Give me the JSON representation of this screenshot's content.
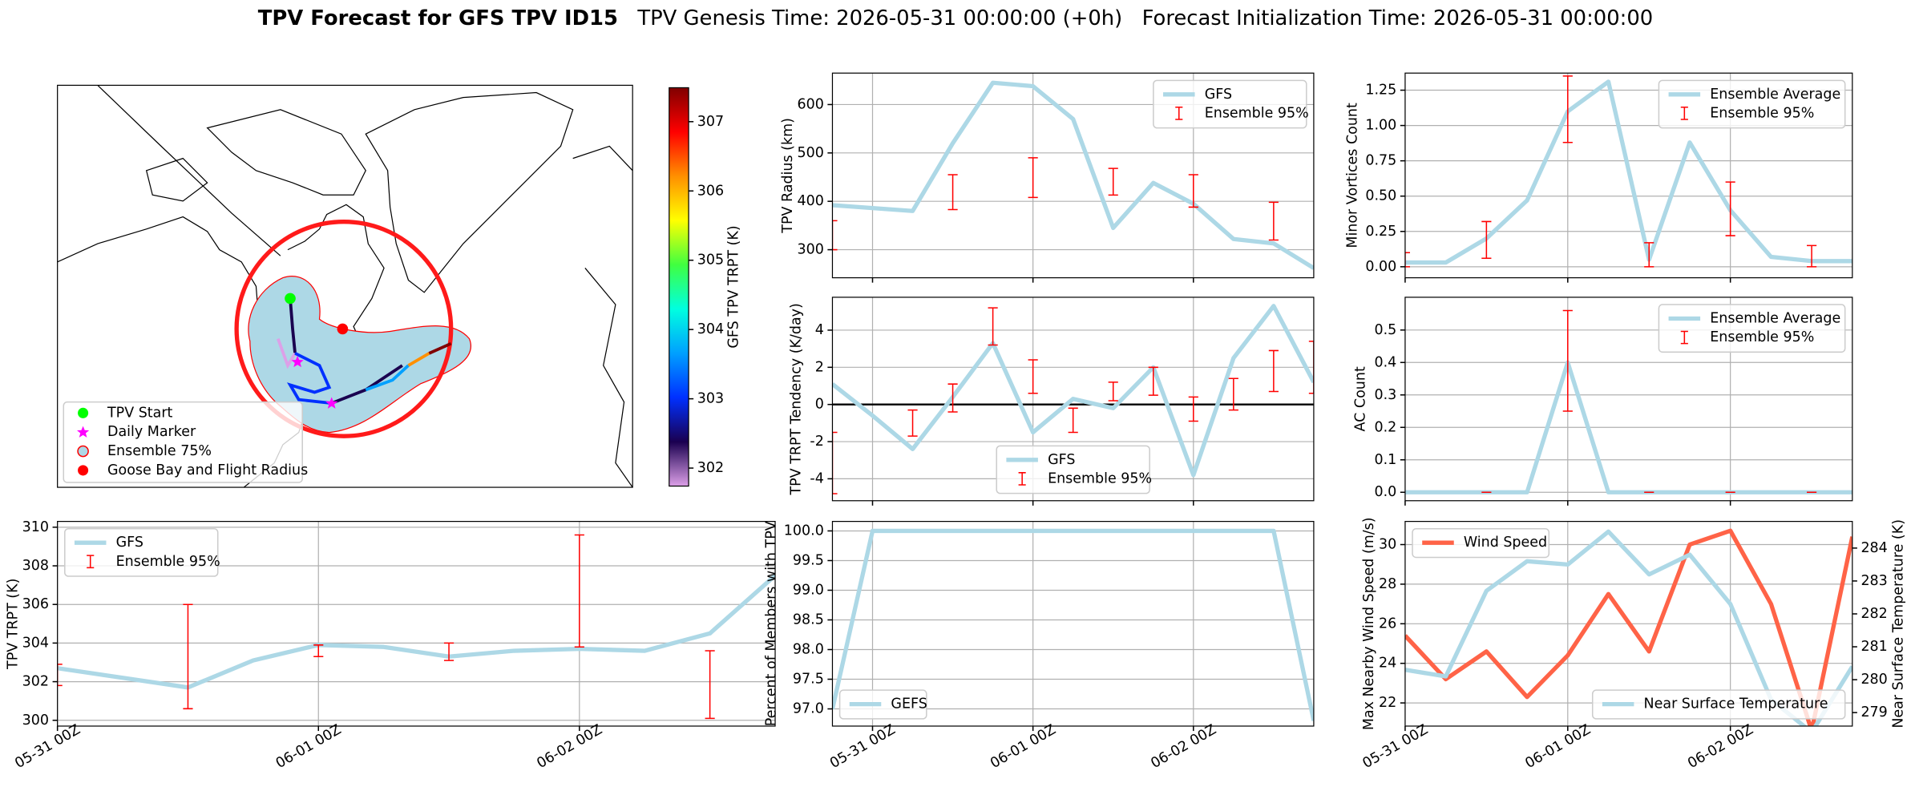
{
  "figure": {
    "title": "TPV Forecast for GFS TPV ID15",
    "genesis": "TPV Genesis Time: 2026-05-31 00:00:00 (+0h)",
    "init": "Forecast Initialization Time: 2026-05-31 00:00:00"
  },
  "chart_data": [
    {
      "type": "map",
      "legend": {
        "loc": "lower left",
        "items": [
          {
            "label": "TPV Start",
            "color": "#00ff00",
            "marker": "circle"
          },
          {
            "label": "Daily Marker",
            "color": "#ff00ff",
            "marker": "star"
          },
          {
            "label": "Ensemble 75%",
            "color": "#add8e6",
            "edgecolor": "#ff0000",
            "marker": "circle"
          },
          {
            "label": "Goose Bay and Flight Radius",
            "color": "#ff0000",
            "marker": "circle"
          }
        ]
      },
      "colorbar": {
        "label": "GFS TPV TRPT (K)",
        "lim": [
          301.74,
          307.49
        ],
        "ticks": [
          302,
          303,
          304,
          305,
          306,
          307
        ],
        "colors": [
          "#dda0e8",
          "#1a0050",
          "#0030ff",
          "#00a0ff",
          "#00ffe0",
          "#40ff40",
          "#ffff00",
          "#ff9000",
          "#ff0000",
          "#800000"
        ]
      }
    },
    {
      "type": "line",
      "ylabel": "TPV TRPT (K)",
      "ylim": [
        299.7,
        310.3
      ],
      "yticks": [
        300,
        302,
        304,
        306,
        308,
        310
      ],
      "grid": true,
      "legend": "upper left",
      "categories": [
        "05-31 00Z",
        null,
        null,
        null,
        "06-01 00Z",
        null,
        null,
        null,
        "06-02 00Z",
        null,
        null,
        null
      ],
      "series": [
        {
          "name": "GFS",
          "color": "#add8e6",
          "values": [
            302.7,
            302.2,
            301.7,
            303.1,
            303.9,
            303.8,
            303.3,
            303.6,
            303.7,
            303.6,
            304.5,
            307.5
          ]
        },
        {
          "name": "Ensemble 95%",
          "color": "#ff0000",
          "low": [
            301.8,
            null,
            300.6,
            null,
            303.3,
            null,
            303.1,
            null,
            303.8,
            null,
            300.1,
            null
          ],
          "high": [
            302.9,
            null,
            306.0,
            null,
            303.9,
            null,
            304.0,
            null,
            309.6,
            null,
            303.6,
            null
          ]
        }
      ]
    },
    {
      "type": "line",
      "ylabel": "TPV Radius (km)",
      "ylim": [
        242,
        665
      ],
      "yticks": [
        300,
        400,
        500,
        600
      ],
      "grid": true,
      "legend": "upper right",
      "series": [
        {
          "name": "GFS",
          "color": "#add8e6",
          "values": [
            392,
            386,
            380,
            520,
            645,
            638,
            570,
            345,
            438,
            395,
            322,
            313,
            262
          ]
        },
        {
          "name": "Ensemble 95%",
          "color": "#ff0000",
          "low": [
            300,
            null,
            null,
            383,
            null,
            408,
            null,
            413,
            null,
            388,
            null,
            320,
            null
          ],
          "high": [
            360,
            null,
            null,
            455,
            null,
            490,
            null,
            468,
            null,
            455,
            null,
            398,
            null
          ]
        }
      ]
    },
    {
      "type": "line",
      "ylabel": "TPV TRPT Tendency (K/day)",
      "ylim": [
        -5.18,
        5.77
      ],
      "yticks": [
        -4,
        -2,
        0,
        2,
        4
      ],
      "grid": true,
      "legend": "lower center",
      "hlines": [
        0
      ],
      "series": [
        {
          "name": "GFS",
          "color": "#add8e6",
          "values": [
            1.1,
            -0.6,
            -2.4,
            0.4,
            3.3,
            -1.5,
            0.3,
            -0.2,
            2.0,
            -3.8,
            2.5,
            5.3,
            1.2
          ]
        },
        {
          "name": "Ensemble 95%",
          "color": "#ff0000",
          "low": [
            -4.8,
            null,
            -1.7,
            -0.4,
            3.2,
            0.6,
            -1.5,
            0.2,
            0.5,
            -0.9,
            -0.3,
            0.7,
            0.6
          ],
          "high": [
            -1.5,
            null,
            -0.3,
            1.1,
            5.2,
            2.4,
            -0.2,
            1.2,
            2.0,
            0.4,
            1.4,
            2.9,
            3.4
          ]
        }
      ]
    },
    {
      "type": "line",
      "ylabel": "Percent of Members with TPV",
      "ylim": [
        96.71,
        100.16
      ],
      "yticks": [
        {
          "value": 97,
          "label": "97.0"
        },
        97.5,
        {
          "value": 98,
          "label": "98.0"
        },
        98.5,
        {
          "value": 99,
          "label": "99.0"
        },
        99.5,
        {
          "value": 100,
          "label": "100.0"
        }
      ],
      "grid": true,
      "legend": "lower left",
      "categories": [
        null,
        "05-31 00Z",
        null,
        null,
        null,
        "06-01 00Z",
        null,
        null,
        null,
        "06-02 00Z",
        null,
        null,
        null
      ],
      "series": [
        {
          "name": "GEFS",
          "color": "#add8e6",
          "values": [
            97.0,
            100,
            100,
            100,
            100,
            100,
            100,
            100,
            100,
            100,
            100,
            100,
            96.8
          ]
        }
      ]
    },
    {
      "type": "line",
      "ylabel": "Minor Vortices Count",
      "ylim": [
        -0.078,
        1.371
      ],
      "yticks": [
        {
          "value": 0,
          "label": "0.00"
        },
        0.25,
        {
          "value": 0.5,
          "label": "0.50"
        },
        0.75,
        {
          "value": 1,
          "label": "1.00"
        },
        1.25
      ],
      "grid": true,
      "legend": "upper right",
      "series": [
        {
          "name": "Ensemble Average",
          "color": "#add8e6",
          "values": [
            0.03,
            0.03,
            0.2,
            0.47,
            1.1,
            1.31,
            0.05,
            0.88,
            0.4,
            0.07,
            0.04,
            0.04
          ]
        },
        {
          "name": "Ensemble 95%",
          "color": "#ff0000",
          "low": [
            0.0,
            null,
            0.06,
            null,
            0.88,
            null,
            0.0,
            null,
            0.22,
            null,
            0.0,
            null
          ],
          "high": [
            0.1,
            null,
            0.32,
            null,
            1.35,
            null,
            0.17,
            null,
            0.6,
            null,
            0.15,
            null
          ]
        }
      ]
    },
    {
      "type": "line",
      "ylabel": "AC Count",
      "ylim": [
        -0.026,
        0.601
      ],
      "yticks": [
        {
          "value": 0,
          "label": "0.0"
        },
        0.1,
        0.2,
        0.3,
        0.4,
        0.5
      ],
      "grid": true,
      "legend": "upper right",
      "series": [
        {
          "name": "Ensemble Average",
          "color": "#add8e6",
          "values": [
            0,
            0,
            0,
            0,
            0.4,
            0,
            0,
            0,
            0,
            0,
            0,
            0
          ]
        },
        {
          "name": "Ensemble 95%",
          "color": "#ff0000",
          "low": [
            null,
            null,
            0,
            null,
            0.25,
            null,
            0,
            null,
            0,
            null,
            0,
            null
          ],
          "high": [
            null,
            null,
            0,
            null,
            0.56,
            null,
            0,
            null,
            0,
            null,
            0,
            null
          ]
        }
      ]
    },
    {
      "type": "line",
      "ylabel": "Max Nearby Wind Speed (m/s)",
      "ylabel_color": "#ff6347",
      "ylim": [
        20.83,
        31.17
      ],
      "yticks": [
        22,
        24,
        26,
        28,
        30
      ],
      "grid": true,
      "y2label": "Near Surface Temperature (K)",
      "y2label_color": "#4169e1",
      "y2lim": [
        278.59,
        284.81
      ],
      "y2ticks": [
        279,
        280,
        281,
        282,
        283,
        284
      ],
      "categories": [
        "05-31 00Z",
        null,
        null,
        null,
        "06-01 00Z",
        null,
        null,
        null,
        "06-02 00Z",
        null,
        null,
        null
      ],
      "series": [
        {
          "name": "Wind Speed",
          "color": "#ff6347",
          "legend_loc": "upper left",
          "values": [
            25.4,
            23.2,
            24.6,
            22.3,
            24.4,
            27.5,
            24.6,
            30.0,
            30.7,
            27.0,
            20.6,
            30.4
          ]
        },
        {
          "name": "Near Surface Temperature",
          "color": "#add8e6",
          "axis": "y2",
          "legend_loc": "lower right",
          "values": [
            280.3,
            280.1,
            282.7,
            283.6,
            283.5,
            284.5,
            283.2,
            283.8,
            282.3,
            279.4,
            278.4,
            280.4
          ]
        }
      ]
    }
  ]
}
